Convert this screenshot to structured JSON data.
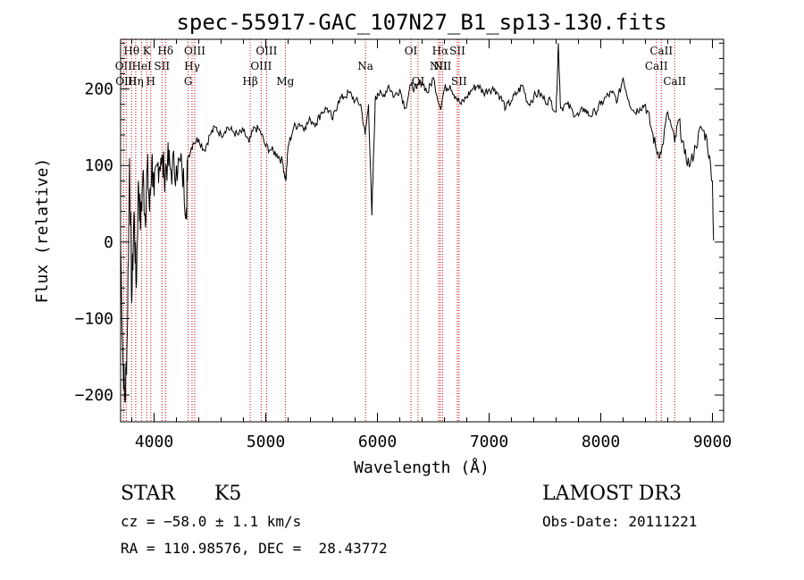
{
  "chart_data": {
    "type": "line",
    "title": "spec-55917-GAC_107N27_B1_sp13-130.fits",
    "xlabel": "Wavelength (Å)",
    "ylabel": "Flux (relative)",
    "xlim": [
      3700,
      9100
    ],
    "ylim": [
      -235,
      265
    ],
    "xticks": [
      4000,
      5000,
      6000,
      7000,
      8000,
      9000
    ],
    "yticks": [
      -200,
      -100,
      0,
      100,
      200
    ],
    "xtick_labels": [
      "4000",
      "5000",
      "6000",
      "7000",
      "8000",
      "9000"
    ],
    "ytick_labels": [
      "−200",
      "−100",
      "0",
      "100",
      "200"
    ],
    "series": [
      {
        "name": "flux",
        "color": "#000000",
        "points": [
          [
            3700,
            0
          ],
          [
            3720,
            -150
          ],
          [
            3740,
            -210
          ],
          [
            3760,
            -120
          ],
          [
            3780,
            110
          ],
          [
            3800,
            -80
          ],
          [
            3820,
            40
          ],
          [
            3840,
            -60
          ],
          [
            3860,
            80
          ],
          [
            3880,
            20
          ],
          [
            3900,
            90
          ],
          [
            3920,
            30
          ],
          [
            3940,
            100
          ],
          [
            3960,
            40
          ],
          [
            3980,
            110
          ],
          [
            4000,
            60
          ],
          [
            4030,
            100
          ],
          [
            4060,
            110
          ],
          [
            4090,
            90
          ],
          [
            4120,
            105
          ],
          [
            4150,
            95
          ],
          [
            4200,
            100
          ],
          [
            4250,
            95
          ],
          [
            4290,
            45
          ],
          [
            4300,
            110
          ],
          [
            4350,
            130
          ],
          [
            4400,
            135
          ],
          [
            4450,
            120
          ],
          [
            4500,
            140
          ],
          [
            4550,
            150
          ],
          [
            4600,
            140
          ],
          [
            4650,
            150
          ],
          [
            4700,
            145
          ],
          [
            4750,
            140
          ],
          [
            4800,
            145
          ],
          [
            4850,
            130
          ],
          [
            4900,
            150
          ],
          [
            4950,
            145
          ],
          [
            5000,
            125
          ],
          [
            5050,
            120
          ],
          [
            5100,
            115
          ],
          [
            5150,
            105
          ],
          [
            5180,
            80
          ],
          [
            5200,
            125
          ],
          [
            5250,
            150
          ],
          [
            5300,
            155
          ],
          [
            5350,
            150
          ],
          [
            5400,
            160
          ],
          [
            5450,
            155
          ],
          [
            5500,
            170
          ],
          [
            5550,
            175
          ],
          [
            5600,
            160
          ],
          [
            5650,
            185
          ],
          [
            5700,
            190
          ],
          [
            5750,
            195
          ],
          [
            5800,
            185
          ],
          [
            5850,
            180
          ],
          [
            5890,
            140
          ],
          [
            5920,
            180
          ],
          [
            5950,
            35
          ],
          [
            5980,
            185
          ],
          [
            6000,
            195
          ],
          [
            6050,
            190
          ],
          [
            6100,
            205
          ],
          [
            6150,
            190
          ],
          [
            6200,
            200
          ],
          [
            6250,
            175
          ],
          [
            6300,
            205
          ],
          [
            6350,
            200
          ],
          [
            6400,
            210
          ],
          [
            6450,
            195
          ],
          [
            6500,
            215
          ],
          [
            6563,
            175
          ],
          [
            6600,
            200
          ],
          [
            6650,
            205
          ],
          [
            6700,
            190
          ],
          [
            6750,
            180
          ],
          [
            6800,
            190
          ],
          [
            6850,
            200
          ],
          [
            6900,
            205
          ],
          [
            6950,
            195
          ],
          [
            7000,
            200
          ],
          [
            7050,
            200
          ],
          [
            7100,
            190
          ],
          [
            7150,
            175
          ],
          [
            7200,
            185
          ],
          [
            7250,
            195
          ],
          [
            7300,
            205
          ],
          [
            7350,
            180
          ],
          [
            7400,
            190
          ],
          [
            7450,
            195
          ],
          [
            7500,
            185
          ],
          [
            7550,
            185
          ],
          [
            7600,
            170
          ],
          [
            7620,
            260
          ],
          [
            7640,
            175
          ],
          [
            7700,
            180
          ],
          [
            7750,
            170
          ],
          [
            7800,
            165
          ],
          [
            7850,
            175
          ],
          [
            7900,
            165
          ],
          [
            7950,
            170
          ],
          [
            8000,
            180
          ],
          [
            8050,
            190
          ],
          [
            8100,
            195
          ],
          [
            8150,
            185
          ],
          [
            8200,
            215
          ],
          [
            8250,
            185
          ],
          [
            8300,
            170
          ],
          [
            8350,
            175
          ],
          [
            8400,
            180
          ],
          [
            8450,
            150
          ],
          [
            8498,
            120
          ],
          [
            8540,
            115
          ],
          [
            8600,
            170
          ],
          [
            8662,
            130
          ],
          [
            8700,
            160
          ],
          [
            8750,
            115
          ],
          [
            8800,
            100
          ],
          [
            8850,
            125
          ],
          [
            8900,
            150
          ],
          [
            8950,
            135
          ],
          [
            9000,
            80
          ],
          [
            9010,
            2
          ]
        ]
      }
    ],
    "lines": [
      {
        "name": "Hθ",
        "x": 3798,
        "row": 1
      },
      {
        "name": "OII",
        "x": 3727,
        "row": 2
      },
      {
        "name": "OIII",
        "x": 3750,
        "row": 3
      },
      {
        "name": "K",
        "x": 3934,
        "row": 1
      },
      {
        "name": "HeI",
        "x": 3889,
        "row": 2
      },
      {
        "name": "Hη",
        "x": 3835,
        "row": 3
      },
      {
        "name": "H",
        "x": 3970,
        "row": 3
      },
      {
        "name": "SII",
        "x": 4070,
        "row": 2
      },
      {
        "name": "Hδ",
        "x": 4102,
        "row": 1
      },
      {
        "name": "OIII",
        "x": 4364,
        "row": 1
      },
      {
        "name": "Hγ",
        "x": 4340,
        "row": 2
      },
      {
        "name": "G",
        "x": 4305,
        "row": 3
      },
      {
        "name": "OIII",
        "x": 5007,
        "row": 1
      },
      {
        "name": "OIII",
        "x": 4959,
        "row": 2
      },
      {
        "name": "Hβ",
        "x": 4861,
        "row": 3
      },
      {
        "name": "Mg",
        "x": 5175,
        "row": 3
      },
      {
        "name": "Na",
        "x": 5893,
        "row": 2
      },
      {
        "name": "OI",
        "x": 6300,
        "row": 1
      },
      {
        "name": "OI",
        "x": 6364,
        "row": 3
      },
      {
        "name": "Hα",
        "x": 6563,
        "row": 1
      },
      {
        "name": "SII",
        "x": 6716,
        "row": 1
      },
      {
        "name": "NII",
        "x": 6548,
        "row": 2
      },
      {
        "name": "NII",
        "x": 6583,
        "row": 2
      },
      {
        "name": "SII",
        "x": 6731,
        "row": 3
      },
      {
        "name": "CaII",
        "x": 8542,
        "row": 1
      },
      {
        "name": "CaII",
        "x": 8498,
        "row": 2
      },
      {
        "name": "CaII",
        "x": 8662,
        "row": 3
      }
    ]
  },
  "info": {
    "class": "STAR",
    "subclass": "K5",
    "survey": "LAMOST DR3",
    "cz": "cz = −58.0 ± 1.1 km/s",
    "obs_date": "Obs-Date: 20111221",
    "radec": "RA = 110.98576, DEC =  28.43772"
  }
}
